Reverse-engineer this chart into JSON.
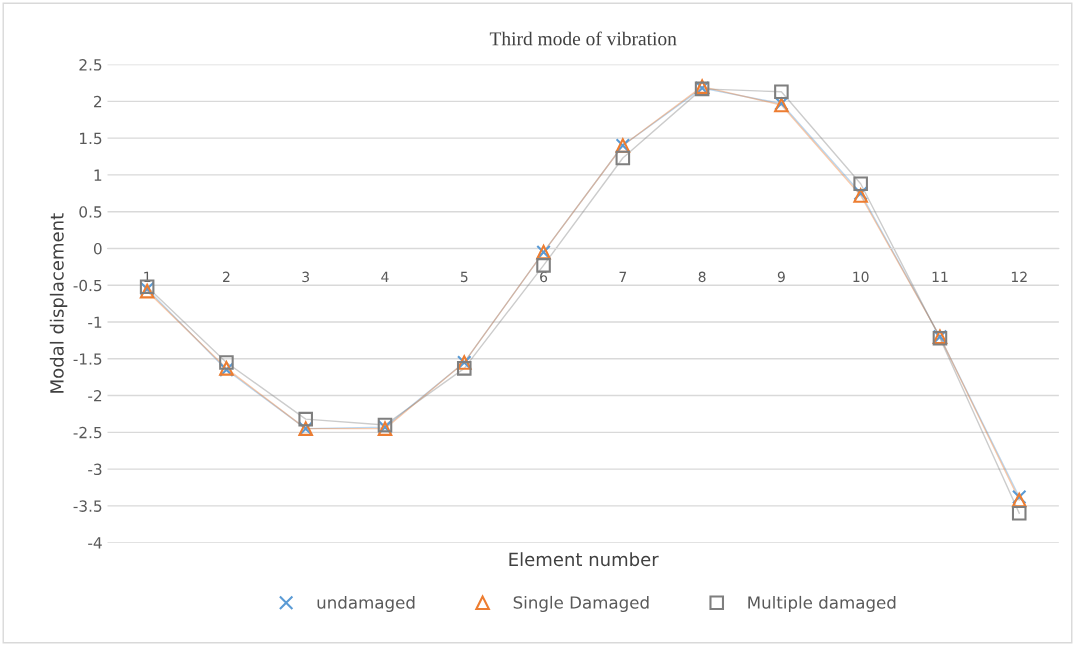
{
  "chart_data": {
    "type": "line",
    "title": "Third mode of vibration",
    "xlabel": "Element number",
    "ylabel": "Modal displacement",
    "categories": [
      "1",
      "2",
      "3",
      "4",
      "5",
      "6",
      "7",
      "8",
      "9",
      "10",
      "11",
      "12"
    ],
    "series": [
      {
        "name": "undamaged",
        "color": "#5b9bd5",
        "marker": "cross",
        "values": [
          -0.55,
          -1.65,
          -2.45,
          -2.43,
          -1.55,
          -0.05,
          1.4,
          2.18,
          1.97,
          0.75,
          -1.2,
          -3.38
        ]
      },
      {
        "name": "Single Damaged",
        "color": "#ed7d31",
        "marker": "triangle",
        "values": [
          -0.58,
          -1.63,
          -2.45,
          -2.45,
          -1.55,
          -0.05,
          1.4,
          2.2,
          1.95,
          0.72,
          -1.2,
          -3.42
        ]
      },
      {
        "name": "Multiple damaged",
        "color": "#7f7f7f",
        "marker": "square",
        "values": [
          -0.52,
          -1.55,
          -2.32,
          -2.4,
          -1.63,
          -0.23,
          1.23,
          2.17,
          2.13,
          0.88,
          -1.22,
          -3.6
        ]
      }
    ],
    "ylim": [
      -4,
      2.5
    ],
    "yticks": [
      {
        "value": -4,
        "label": "-4"
      },
      {
        "value": -3.5,
        "label": "-3.5"
      },
      {
        "value": -3,
        "label": "-3"
      },
      {
        "value": -2.5,
        "label": "-2.5"
      },
      {
        "value": -2,
        "label": "-2"
      },
      {
        "value": -1.5,
        "label": "-1.5"
      },
      {
        "value": -1,
        "label": "-1"
      },
      {
        "value": -0.5,
        "label": "-0.5"
      },
      0,
      0.5,
      1,
      1.5,
      2,
      2.5
    ],
    "grid": "y",
    "legend": "bottom",
    "line_style": "solid"
  }
}
